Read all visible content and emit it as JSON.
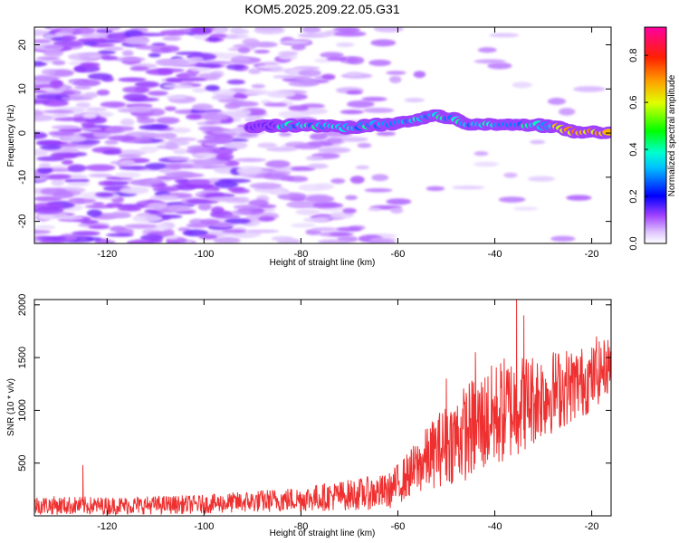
{
  "title": "KOM5.2025.209.22.05.G31",
  "chart_data": [
    {
      "type": "heatmap",
      "xlabel": "Height of straight line (km)",
      "ylabel": "Frequency (Hz)",
      "xlim": [
        -135,
        -16
      ],
      "ylim": [
        -25,
        24
      ],
      "x_ticks": [
        -120,
        -100,
        -80,
        -60,
        -40,
        -20
      ],
      "y_ticks": [
        -20,
        -10,
        0,
        10,
        20
      ],
      "colorbar": {
        "label": "Normalized spectral amplitude",
        "range": [
          0,
          0.92
        ],
        "ticks": [
          0.0,
          0.2,
          0.4,
          0.6,
          0.8
        ]
      },
      "ridge": {
        "x_start": -90,
        "x_end": -16,
        "frequency": [
          [
            -90,
            1.5
          ],
          [
            -80,
            1.7
          ],
          [
            -70,
            1.3
          ],
          [
            -60,
            2.2
          ],
          [
            -52,
            4.0
          ],
          [
            -48,
            3.0
          ],
          [
            -44,
            1.8
          ],
          [
            -35,
            2.0
          ],
          [
            -28,
            1.5
          ],
          [
            -24,
            0.5
          ],
          [
            -16,
            0.2
          ]
        ]
      }
    },
    {
      "type": "line",
      "xlabel": "Height of straight line (km)",
      "ylabel": "SNR (10 * v/v)",
      "xlim": [
        -135,
        -16
      ],
      "ylim": [
        0,
        2050
      ],
      "x_ticks": [
        -120,
        -100,
        -80,
        -60,
        -40,
        -20
      ],
      "y_ticks": [
        500,
        1000,
        1500,
        2000
      ],
      "line_color": "#ee3030",
      "envelope": [
        {
          "x": -135,
          "mean": 100,
          "spread": 90
        },
        {
          "x": -120,
          "mean": 95,
          "spread": 85
        },
        {
          "x": -100,
          "mean": 110,
          "spread": 90
        },
        {
          "x": -80,
          "mean": 160,
          "spread": 120
        },
        {
          "x": -62,
          "mean": 230,
          "spread": 170
        },
        {
          "x": -58,
          "mean": 380,
          "spread": 220
        },
        {
          "x": -52,
          "mean": 620,
          "spread": 350
        },
        {
          "x": -45,
          "mean": 820,
          "spread": 480
        },
        {
          "x": -38,
          "mean": 1000,
          "spread": 520
        },
        {
          "x": -30,
          "mean": 1150,
          "spread": 420
        },
        {
          "x": -20,
          "mean": 1300,
          "spread": 320
        },
        {
          "x": -16,
          "mean": 1450,
          "spread": 260
        }
      ],
      "peaks": [
        {
          "x": -125,
          "y": 480
        },
        {
          "x": -50,
          "y": 1300
        },
        {
          "x": -44,
          "y": 1550
        },
        {
          "x": -35.5,
          "y": 2050
        },
        {
          "x": -34,
          "y": 1900
        },
        {
          "x": -19,
          "y": 1700
        }
      ]
    }
  ]
}
